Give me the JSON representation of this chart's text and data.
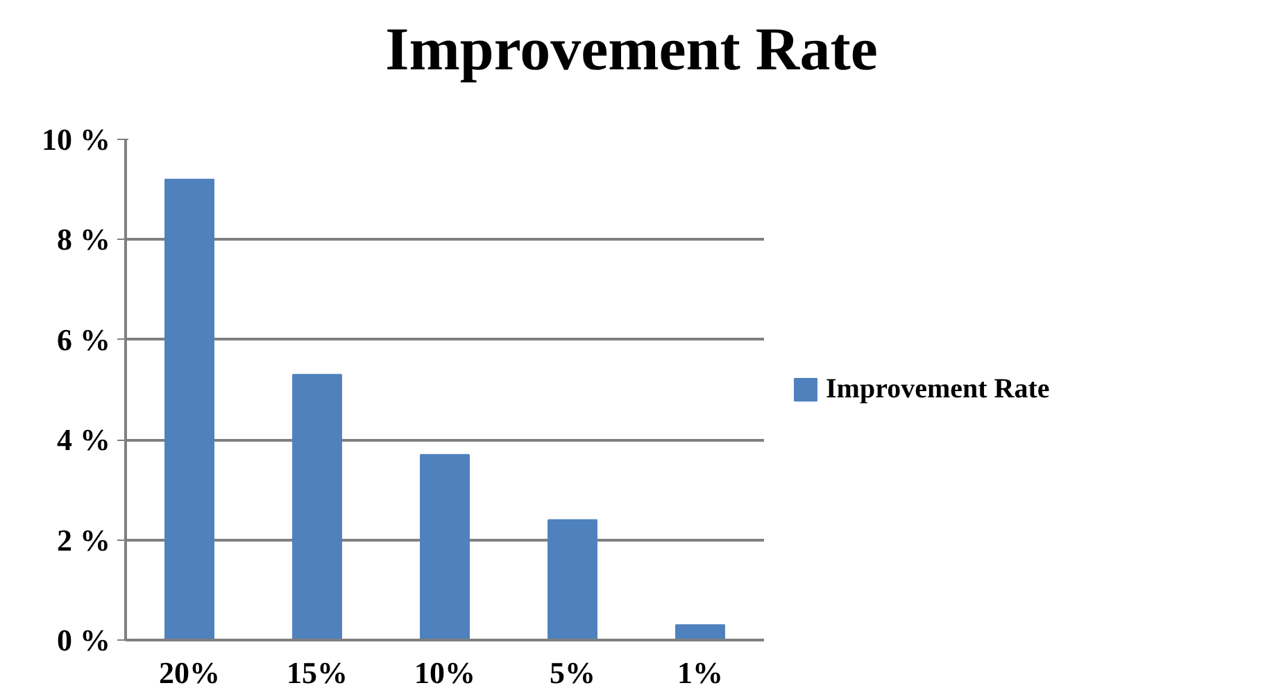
{
  "chart_data": {
    "type": "bar",
    "title": "Improvement Rate",
    "categories": [
      "20%",
      "15%",
      "10%",
      "5%",
      "1%"
    ],
    "series": [
      {
        "name": "Improvement Rate",
        "color": "#4f81bd",
        "values": [
          9.2,
          5.3,
          3.7,
          2.4,
          0.3
        ]
      }
    ],
    "ylim": [
      0,
      10
    ],
    "yticks": [
      {
        "value": 0,
        "label": "0 %"
      },
      {
        "value": 2,
        "label": "2 %"
      },
      {
        "value": 4,
        "label": "4 %"
      },
      {
        "value": 6,
        "label": "6 %"
      },
      {
        "value": 8,
        "label": "8 %"
      },
      {
        "value": 10,
        "label": "10 %"
      }
    ],
    "grid": "y",
    "legend": "right"
  }
}
